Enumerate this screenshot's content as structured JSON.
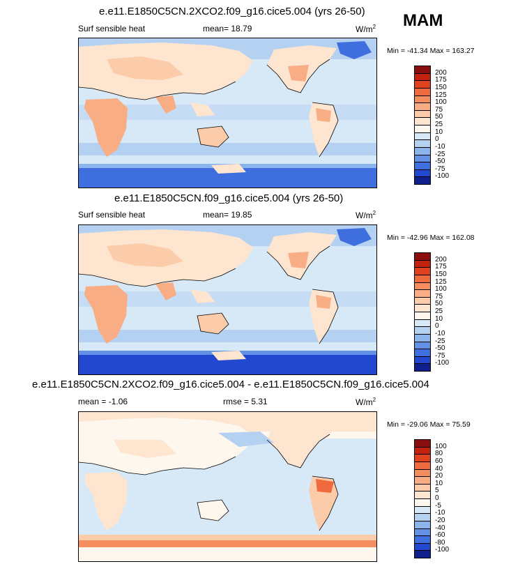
{
  "season": "MAM",
  "panels": [
    {
      "title": "e.e11.E1850C5CN.2XCO2.f09_g16.cice5.004 (yrs 26-50)",
      "left_label": "Surf sensible heat",
      "mid_label": "mean=  18.79",
      "units": "W/m",
      "units_sup": "2",
      "minmax": "Min = -41.34 Max = 163.27",
      "levels": [
        "200",
        "175",
        "150",
        "125",
        "100",
        "75",
        "50",
        "25",
        "10",
        "0",
        "-10",
        "-25",
        "-50",
        "-75",
        "-100"
      ],
      "colors": [
        "#8b0f0f",
        "#c2220e",
        "#e0411f",
        "#ef6a3c",
        "#f58e5e",
        "#f8ad84",
        "#fbcbaa",
        "#fde5cf",
        "#fdf7ee",
        "#d7e8f7",
        "#b4d1f1",
        "#8bb3ec",
        "#6391e6",
        "#3f6fde",
        "#2248cf",
        "#0f1f8c"
      ]
    },
    {
      "title": "e.e11.E1850C5CN.f09_g16.cice5.004 (yrs 26-50)",
      "left_label": "Surf sensible heat",
      "mid_label": "mean=  19.85",
      "units": "W/m",
      "units_sup": "2",
      "minmax": "Min = -42.96 Max = 162.08",
      "levels": [
        "200",
        "175",
        "150",
        "125",
        "100",
        "75",
        "50",
        "25",
        "10",
        "0",
        "-10",
        "-25",
        "-50",
        "-75",
        "-100"
      ],
      "colors": [
        "#8b0f0f",
        "#c2220e",
        "#e0411f",
        "#ef6a3c",
        "#f58e5e",
        "#f8ad84",
        "#fbcbaa",
        "#fde5cf",
        "#fdf7ee",
        "#d7e8f7",
        "#b4d1f1",
        "#8bb3ec",
        "#6391e6",
        "#3f6fde",
        "#2248cf",
        "#0f1f8c"
      ]
    },
    {
      "title": "e.e11.E1850C5CN.2XCO2.f09_g16.cice5.004 - e.e11.E1850C5CN.f09_g16.cice5.004",
      "left_label": "mean =  -1.06",
      "mid_label": "rmse =  5.31",
      "units": "W/m",
      "units_sup": "2",
      "minmax": "Min = -29.06 Max =  75.59",
      "levels": [
        "100",
        "80",
        "60",
        "40",
        "20",
        "10",
        "5",
        "0",
        "-5",
        "-10",
        "-20",
        "-40",
        "-60",
        "-80",
        "-100"
      ],
      "colors": [
        "#8b0f0f",
        "#c2220e",
        "#e0411f",
        "#ef6a3c",
        "#f58e5e",
        "#f8ad84",
        "#fbcbaa",
        "#fde5cf",
        "#fdf7ee",
        "#d7e8f7",
        "#b4d1f1",
        "#8bb3ec",
        "#6391e6",
        "#3f6fde",
        "#2248cf",
        "#0f1f8c"
      ]
    }
  ]
}
